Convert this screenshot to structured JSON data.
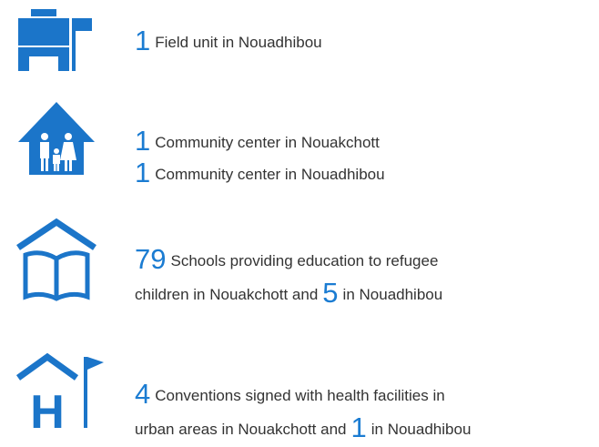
{
  "items": [
    {
      "lines": [
        [
          {
            "number": 1
          },
          {
            "text": "Field unit in Nouadhibou"
          }
        ]
      ]
    },
    {
      "lines": [
        [
          {
            "number": 1
          },
          {
            "text": "Community center in Nouakchott"
          }
        ],
        [
          {
            "number": 1
          },
          {
            "text": "Community center in Nouadhibou"
          }
        ]
      ]
    },
    {
      "lines": [
        [
          {
            "number": 79
          },
          {
            "text": "Schools providing education to refugee"
          }
        ],
        [
          {
            "text": "children in Nouakchott and"
          },
          {
            "number": 5
          },
          {
            "text": "in Nouadhibou"
          }
        ]
      ]
    },
    {
      "lines": [
        [
          {
            "number": 4
          },
          {
            "text": "Conventions signed with health facilities in"
          }
        ],
        [
          {
            "text": "urban areas in Nouakchott and"
          },
          {
            "number": 1
          },
          {
            "text": "in Nouadhibou"
          }
        ]
      ]
    }
  ]
}
